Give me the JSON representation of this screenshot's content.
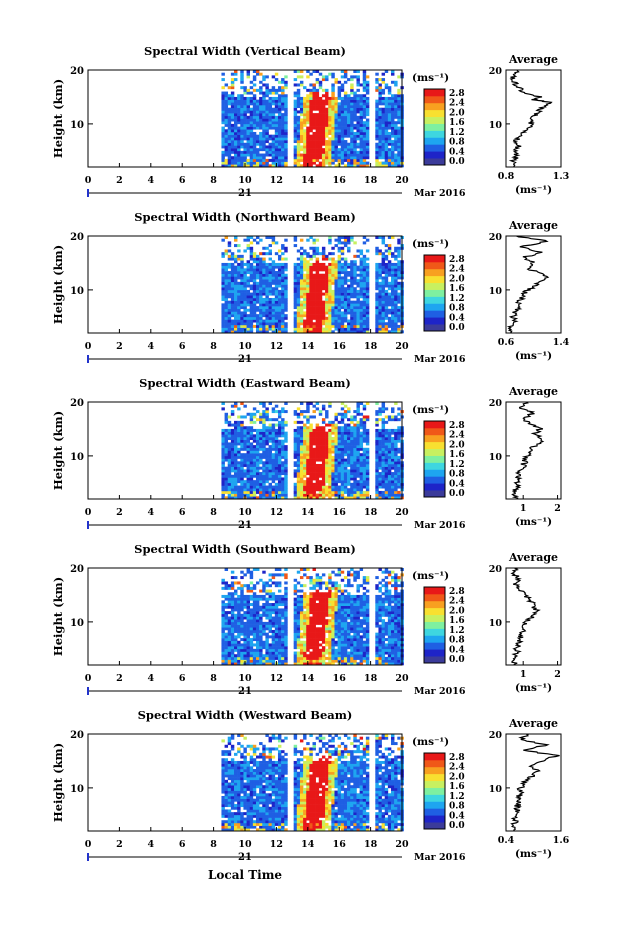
{
  "chart_data": {
    "type": "heatmap",
    "xlabel": "Local Time",
    "date_label": "Mar 2016",
    "day_label": "21",
    "x_ticks": [
      "0",
      "2",
      "4",
      "6",
      "8",
      "10",
      "12",
      "14",
      "16",
      "18",
      "20"
    ],
    "xlim": [
      0,
      20
    ],
    "ylabel": "Height (km)",
    "y_ticks": [
      "10",
      "20"
    ],
    "ylim": [
      2,
      20
    ],
    "colorbar": {
      "unit_label": "(ms⁻¹)",
      "ticks": [
        "0.0",
        "0.4",
        "0.8",
        "1.2",
        "1.6",
        "2.0",
        "2.4",
        "2.8"
      ],
      "range": [
        0,
        2.8
      ],
      "colors": [
        "#3b3b9a",
        "#1e24c8",
        "#1f5fe3",
        "#1ea5f0",
        "#3ed6e0",
        "#7ef0a0",
        "#c8f060",
        "#f8e030",
        "#f8a020",
        "#f05818",
        "#e81818"
      ]
    },
    "data_gaps": [
      [
        0,
        8.5
      ],
      [
        12.7,
        13.1
      ],
      [
        17.8,
        18.2
      ]
    ],
    "profile_title": "Average",
    "profile_xlabel": "(ms⁻¹)",
    "panels": [
      {
        "title": "Spectral Width (Vertical Beam)",
        "profile_ticks": [
          "0.8",
          "1.3"
        ],
        "profile_xlim": [
          0.8,
          1.3
        ],
        "profile": [
          [
            2,
            0.88
          ],
          [
            3,
            0.86
          ],
          [
            4,
            0.9
          ],
          [
            5,
            0.87
          ],
          [
            6,
            0.92
          ],
          [
            7,
            0.89
          ],
          [
            8,
            0.95
          ],
          [
            9,
            1.0
          ],
          [
            10,
            1.02
          ],
          [
            11,
            1.05
          ],
          [
            12,
            1.08
          ],
          [
            13,
            1.12
          ],
          [
            14,
            1.2
          ],
          [
            14.5,
            1.05
          ],
          [
            15,
            1.1
          ],
          [
            16,
            0.95
          ],
          [
            17,
            0.9
          ],
          [
            18,
            0.88
          ],
          [
            19,
            0.86
          ],
          [
            20,
            0.9
          ]
        ]
      },
      {
        "title": "Spectral Width (Northward Beam)",
        "profile_ticks": [
          "0.6",
          "1.4"
        ],
        "profile_xlim": [
          0.6,
          1.4
        ],
        "profile": [
          [
            2,
            0.7
          ],
          [
            3,
            0.68
          ],
          [
            4,
            0.72
          ],
          [
            5,
            0.7
          ],
          [
            6,
            0.74
          ],
          [
            7,
            0.78
          ],
          [
            8,
            0.8
          ],
          [
            9,
            0.85
          ],
          [
            10,
            0.92
          ],
          [
            11,
            1.05
          ],
          [
            12,
            1.2
          ],
          [
            13,
            1.1
          ],
          [
            14,
            0.9
          ],
          [
            15,
            1.0
          ],
          [
            16,
            0.85
          ],
          [
            17,
            1.1
          ],
          [
            18,
            0.8
          ],
          [
            19,
            1.2
          ],
          [
            20,
            0.75
          ]
        ]
      },
      {
        "title": "Spectral Width (Eastward Beam)",
        "profile_ticks": [
          "1",
          "2"
        ],
        "profile_xlim": [
          0.5,
          2.1
        ],
        "profile": [
          [
            2,
            0.75
          ],
          [
            3,
            0.72
          ],
          [
            4,
            0.8
          ],
          [
            5,
            0.82
          ],
          [
            6,
            0.86
          ],
          [
            7,
            0.9
          ],
          [
            8,
            1.0
          ],
          [
            9,
            1.05
          ],
          [
            10,
            1.1
          ],
          [
            11,
            1.2
          ],
          [
            12,
            1.35
          ],
          [
            13,
            1.55
          ],
          [
            14,
            1.35
          ],
          [
            15,
            1.5
          ],
          [
            16,
            1.2
          ],
          [
            17,
            1.0
          ],
          [
            18,
            1.3
          ],
          [
            19,
            0.9
          ],
          [
            20,
            1.1
          ]
        ]
      },
      {
        "title": "Spectral Width (Southward Beam)",
        "profile_ticks": [
          "1",
          "2"
        ],
        "profile_xlim": [
          0.5,
          2.1
        ],
        "profile": [
          [
            2,
            0.78
          ],
          [
            3,
            0.75
          ],
          [
            4,
            0.8
          ],
          [
            5,
            0.82
          ],
          [
            6,
            0.86
          ],
          [
            7,
            0.9
          ],
          [
            8,
            0.95
          ],
          [
            9,
            1.0
          ],
          [
            10,
            1.1
          ],
          [
            11,
            1.25
          ],
          [
            12,
            1.4
          ],
          [
            13,
            1.3
          ],
          [
            14,
            1.2
          ],
          [
            15,
            1.05
          ],
          [
            16,
            0.95
          ],
          [
            17,
            0.8
          ],
          [
            18,
            0.9
          ],
          [
            19,
            0.7
          ],
          [
            20,
            0.85
          ]
        ]
      },
      {
        "title": "Spectral Width (Westward Beam)",
        "profile_ticks": [
          "0.4",
          "1.6"
        ],
        "profile_xlim": [
          0.4,
          1.6
        ],
        "profile": [
          [
            2,
            0.6
          ],
          [
            3,
            0.58
          ],
          [
            4,
            0.62
          ],
          [
            5,
            0.6
          ],
          [
            6,
            0.64
          ],
          [
            7,
            0.66
          ],
          [
            8,
            0.68
          ],
          [
            9,
            0.7
          ],
          [
            10,
            0.72
          ],
          [
            11,
            0.8
          ],
          [
            12,
            0.95
          ],
          [
            13,
            1.1
          ],
          [
            14,
            0.9
          ],
          [
            15,
            1.2
          ],
          [
            16,
            1.5
          ],
          [
            17,
            0.8
          ],
          [
            18,
            1.3
          ],
          [
            19,
            0.7
          ],
          [
            20,
            0.9
          ]
        ]
      }
    ]
  }
}
